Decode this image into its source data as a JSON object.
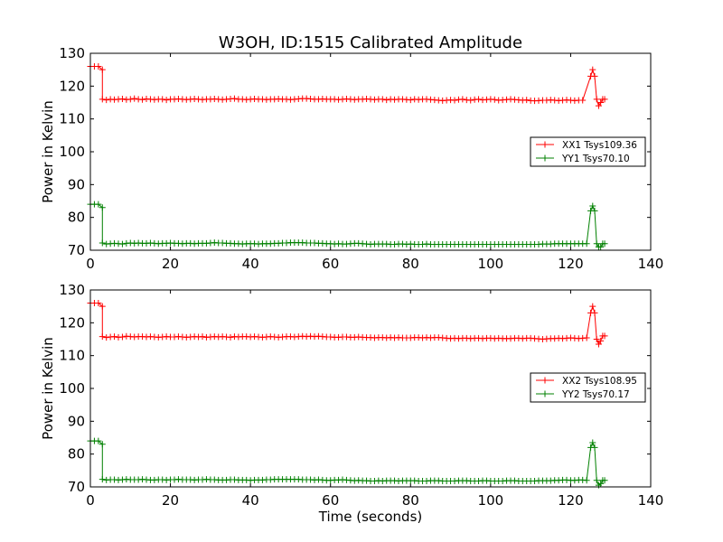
{
  "title": "W3OH, ID:1515 Calibrated Amplitude",
  "xlabel": "Time (seconds)",
  "ylabel": "Power in Kelvin",
  "chart_data": [
    {
      "type": "line",
      "title": "W3OH, ID:1515 Calibrated Amplitude",
      "xlabel": "",
      "ylabel": "Power in Kelvin",
      "xlim": [
        0,
        140
      ],
      "ylim": [
        70,
        130
      ],
      "xticks": [
        0,
        20,
        40,
        60,
        80,
        100,
        120,
        140
      ],
      "yticks": [
        70,
        80,
        90,
        100,
        110,
        120,
        130
      ],
      "legend_position": "center-right",
      "series": [
        {
          "name": "XX1 Tsys109.36",
          "color": "#ff0000",
          "marker": "+",
          "segments": [
            {
              "start": 0,
              "step": 1,
              "values": [
                126,
                126,
                126,
                125
              ]
            },
            {
              "start": 3,
              "step": 1,
              "values": [
                116,
                115.8,
                116,
                115.9,
                116,
                116.1,
                115.9,
                116,
                116.2,
                116,
                115.9,
                116.1,
                116,
                115.9,
                116,
                116,
                115.8,
                116,
                116,
                116.1,
                116,
                115.9,
                116,
                116.1,
                116,
                115.9,
                116,
                116,
                116.1,
                116,
                115.9,
                116,
                116.1,
                116.2,
                116,
                116,
                115.9,
                116,
                116.1,
                116,
                116,
                115.9,
                116,
                116,
                116.1,
                116,
                116,
                115.9,
                116,
                116.1,
                116.2,
                116.2,
                116.1,
                116,
                116,
                116.1,
                116,
                116,
                116,
                115.9,
                116,
                116.1,
                116,
                115.9,
                116,
                116,
                116.1,
                116,
                115.9,
                116,
                116,
                115.8,
                116,
                115.9,
                116,
                116,
                115.9,
                115.8,
                116,
                115.9,
                116,
                116,
                115.9,
                115.8,
                115.7,
                115.6,
                115.7,
                115.8,
                115.7,
                115.9,
                116,
                115.8,
                115.7,
                115.9,
                116,
                115.8,
                115.9,
                116,
                115.9,
                115.7,
                115.8,
                115.9,
                116,
                115.9,
                115.8,
                115.7,
                115.8,
                115.6,
                115.5,
                115.6,
                115.7,
                115.7,
                115.8,
                115.7,
                115.6,
                115.7,
                115.8,
                115.7,
                115.6,
                115.7,
                115.7
              ]
            },
            {
              "start": 125,
              "step": 0.5,
              "values": [
                123,
                125,
                123,
                116,
                114,
                115,
                116,
                116
              ]
            }
          ]
        },
        {
          "name": "YY1 Tsys70.10",
          "color": "#008000",
          "marker": "+",
          "segments": [
            {
              "start": 0,
              "step": 1,
              "values": [
                84,
                84,
                84,
                83
              ]
            },
            {
              "start": 3,
              "step": 1,
              "values": [
                72.2,
                71.9,
                72,
                72.1,
                72,
                71.9,
                72.1,
                72.2,
                72.1,
                72.2,
                72.1,
                72.1,
                72.2,
                72.1,
                72,
                72.1,
                72.1,
                72.2,
                72.1,
                72.1,
                72,
                72.1,
                72.1,
                72,
                72.1,
                72.1,
                72.1,
                72.2,
                72.3,
                72.2,
                72.2,
                72.1,
                72.1,
                72,
                72,
                71.9,
                72,
                72,
                72,
                71.9,
                72,
                72,
                72,
                72.1,
                72.1,
                72.2,
                72.2,
                72.3,
                72.3,
                72.3,
                72.3,
                72.2,
                72.2,
                72.2,
                72.1,
                72.1,
                72,
                72,
                71.9,
                72,
                71.9,
                71.9,
                72,
                72.1,
                72.1,
                72,
                71.9,
                71.8,
                71.9,
                71.9,
                71.9,
                71.9,
                71.8,
                71.8,
                71.9,
                71.9,
                71.8,
                71.9,
                71.8,
                71.8,
                71.8,
                71.9,
                71.8,
                71.8,
                71.8,
                71.8,
                71.8,
                71.8,
                71.8,
                71.8,
                71.8,
                71.8,
                71.8,
                71.8,
                71.8,
                71.8,
                71.8,
                71.8,
                71.8,
                71.8,
                71.8,
                71.8,
                71.8,
                71.8,
                71.8,
                71.8,
                71.8,
                71.8,
                71.8,
                71.8,
                71.9,
                71.9,
                71.9,
                72,
                72,
                72,
                72,
                72,
                72,
                72,
                72,
                72
              ]
            },
            {
              "start": 125,
              "step": 0.5,
              "values": [
                82,
                83.5,
                82,
                72,
                71,
                71,
                72,
                72
              ]
            }
          ]
        }
      ]
    },
    {
      "type": "line",
      "title": "",
      "xlabel": "Time (seconds)",
      "ylabel": "Power in Kelvin",
      "xlim": [
        0,
        140
      ],
      "ylim": [
        70,
        130
      ],
      "xticks": [
        0,
        20,
        40,
        60,
        80,
        100,
        120,
        140
      ],
      "yticks": [
        70,
        80,
        90,
        100,
        110,
        120,
        130
      ],
      "legend_position": "center-right",
      "series": [
        {
          "name": "XX2 Tsys108.95",
          "color": "#ff0000",
          "marker": "+",
          "segments": [
            {
              "start": 0,
              "step": 1,
              "values": [
                126,
                126,
                126,
                125
              ]
            },
            {
              "start": 3,
              "step": 1,
              "values": [
                115.8,
                115.5,
                115.7,
                115.8,
                115.6,
                115.7,
                115.9,
                115.8,
                115.7,
                115.8,
                115.8,
                115.7,
                115.8,
                115.7,
                115.6,
                115.7,
                115.8,
                115.7,
                115.7,
                115.8,
                115.7,
                115.6,
                115.7,
                115.8,
                115.7,
                115.8,
                115.6,
                115.7,
                115.8,
                115.7,
                115.8,
                115.7,
                115.6,
                115.8,
                115.7,
                115.8,
                115.8,
                115.7,
                115.8,
                115.7,
                115.6,
                115.7,
                115.8,
                115.7,
                115.6,
                115.7,
                115.8,
                115.8,
                115.7,
                115.8,
                115.9,
                115.8,
                115.9,
                115.8,
                115.9,
                115.8,
                115.7,
                115.7,
                115.6,
                115.6,
                115.7,
                115.7,
                115.6,
                115.6,
                115.7,
                115.6,
                115.5,
                115.5,
                115.4,
                115.5,
                115.5,
                115.4,
                115.5,
                115.4,
                115.5,
                115.4,
                115.4,
                115.4,
                115.5,
                115.5,
                115.4,
                115.5,
                115.4,
                115.5,
                115.5,
                115.4,
                115.3,
                115.2,
                115.3,
                115.2,
                115.3,
                115.3,
                115.2,
                115.3,
                115.3,
                115.2,
                115.3,
                115.3,
                115.2,
                115.3,
                115.2,
                115.2,
                115.2,
                115.3,
                115.3,
                115.2,
                115.3,
                115.3,
                115.2,
                115.1,
                115,
                115.1,
                115.2,
                115.2,
                115.3,
                115.2,
                115.3,
                115.4,
                115.3,
                115.2,
                115.3,
                115.4
              ]
            },
            {
              "start": 125,
              "step": 0.5,
              "values": [
                123,
                125,
                123,
                115,
                113.5,
                114.5,
                116,
                116
              ]
            }
          ]
        },
        {
          "name": "YY2 Tsys70.17",
          "color": "#008000",
          "marker": "+",
          "segments": [
            {
              "start": 0,
              "step": 1,
              "values": [
                84,
                84,
                84,
                83
              ]
            },
            {
              "start": 3,
              "step": 1,
              "values": [
                72.3,
                72.1,
                72.2,
                72.2,
                72.1,
                72.2,
                72.3,
                72.2,
                72.2,
                72.2,
                72.3,
                72.2,
                72.1,
                72.1,
                72.2,
                72.2,
                72.1,
                72.2,
                72.2,
                72.3,
                72.2,
                72.2,
                72.2,
                72.1,
                72.2,
                72.2,
                72.3,
                72.2,
                72.2,
                72.1,
                72.1,
                72.1,
                72.2,
                72.2,
                72.1,
                72.1,
                72.1,
                72,
                72.1,
                72.1,
                72.1,
                72.2,
                72.2,
                72.3,
                72.3,
                72.3,
                72.3,
                72.3,
                72.3,
                72.3,
                72.2,
                72.2,
                72.2,
                72.1,
                72.2,
                72.1,
                72,
                72,
                72.1,
                72.1,
                72.2,
                72.1,
                72,
                71.9,
                72,
                71.9,
                71.9,
                71.8,
                71.8,
                71.9,
                71.8,
                71.9,
                71.9,
                71.9,
                71.8,
                71.9,
                71.9,
                71.9,
                71.9,
                71.8,
                71.8,
                71.8,
                71.9,
                71.9,
                71.9,
                71.8,
                71.8,
                71.8,
                71.8,
                71.9,
                71.9,
                71.9,
                71.8,
                71.8,
                71.8,
                71.9,
                71.9,
                71.8,
                71.8,
                71.8,
                71.8,
                71.9,
                71.9,
                71.9,
                71.8,
                71.8,
                71.8,
                71.8,
                71.8,
                71.9,
                71.9,
                71.9,
                71.9,
                72,
                72,
                72.1,
                72.1,
                72,
                72,
                72.1,
                72.1,
                72
              ]
            },
            {
              "start": 125,
              "step": 0.5,
              "values": [
                82,
                83.5,
                82,
                72,
                70.5,
                71,
                72,
                72
              ]
            }
          ]
        }
      ]
    }
  ]
}
